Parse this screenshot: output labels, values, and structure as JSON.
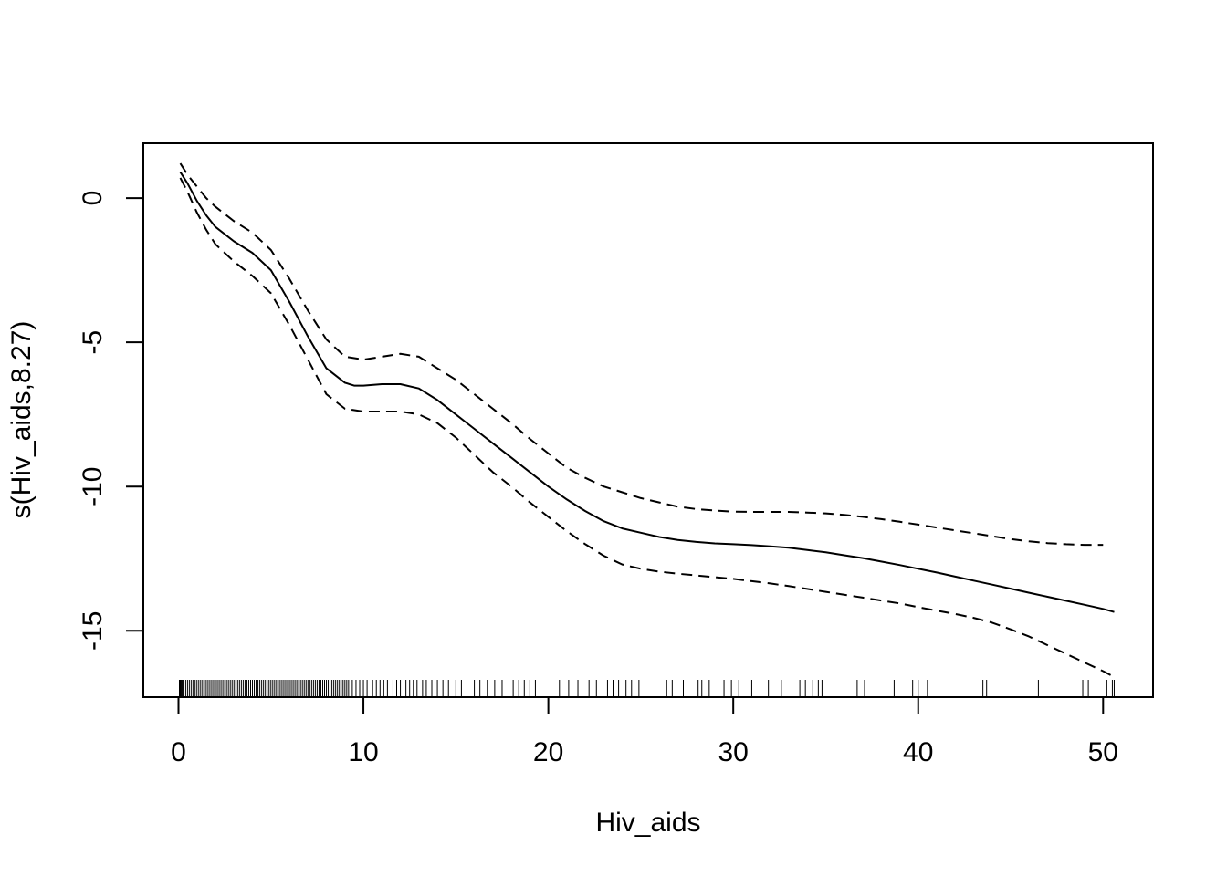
{
  "chart_data": {
    "type": "line",
    "title": "",
    "xlabel": "Hiv_aids",
    "ylabel": "s(Hiv_aids,8.27)",
    "xlim": [
      -1.9,
      52.7
    ],
    "ylim": [
      -17.3,
      1.9
    ],
    "x_ticks": [
      0,
      10,
      20,
      30,
      40,
      50
    ],
    "x_tick_labels": [
      "0",
      "10",
      "20",
      "30",
      "40",
      "50"
    ],
    "y_ticks": [
      0,
      -5,
      -10,
      -15
    ],
    "y_tick_labels": [
      "0",
      "-5",
      "-10",
      "-15"
    ],
    "grid": false,
    "legend": "none",
    "series": [
      {
        "style": "solid",
        "x": [
          0.1,
          0.5,
          1,
          1.5,
          2,
          3,
          4,
          5,
          6,
          7,
          8,
          9,
          9.5,
          10,
          11,
          12,
          13,
          14,
          15,
          16,
          17,
          18,
          19,
          20,
          21,
          22,
          23,
          24,
          25,
          26,
          27,
          28,
          29,
          30,
          31,
          32,
          33,
          34,
          35,
          36,
          37,
          38,
          39,
          40,
          41,
          42,
          43,
          44,
          45,
          46,
          47,
          48,
          49,
          50,
          50.6
        ],
        "values": [
          0.9,
          0.5,
          -0.1,
          -0.6,
          -1.0,
          -1.5,
          -1.9,
          -2.5,
          -3.6,
          -4.8,
          -5.9,
          -6.4,
          -6.5,
          -6.5,
          -6.45,
          -6.45,
          -6.6,
          -7.0,
          -7.5,
          -8.0,
          -8.5,
          -9.0,
          -9.5,
          -10.0,
          -10.45,
          -10.85,
          -11.2,
          -11.45,
          -11.6,
          -11.75,
          -11.85,
          -11.92,
          -11.97,
          -12.0,
          -12.03,
          -12.07,
          -12.12,
          -12.2,
          -12.28,
          -12.38,
          -12.48,
          -12.6,
          -12.72,
          -12.85,
          -12.98,
          -13.12,
          -13.26,
          -13.4,
          -13.54,
          -13.68,
          -13.82,
          -13.96,
          -14.1,
          -14.24,
          -14.35
        ]
      },
      {
        "style": "dashed",
        "x": [
          0.1,
          0.5,
          1,
          1.5,
          2,
          3,
          4,
          5,
          6,
          7,
          8,
          9,
          10,
          11,
          12,
          13,
          14,
          15,
          16,
          17,
          18,
          19,
          20,
          21,
          22,
          23,
          24,
          25,
          26,
          27,
          28,
          29,
          30,
          31,
          32,
          33,
          34,
          35,
          36,
          37,
          38,
          39,
          40,
          41,
          42,
          43,
          44,
          45,
          46,
          47,
          48,
          49,
          50
        ],
        "values": [
          1.2,
          0.8,
          0.4,
          0.0,
          -0.3,
          -0.8,
          -1.2,
          -1.8,
          -2.8,
          -3.9,
          -4.9,
          -5.5,
          -5.6,
          -5.5,
          -5.4,
          -5.5,
          -5.9,
          -6.3,
          -6.8,
          -7.3,
          -7.8,
          -8.35,
          -8.85,
          -9.35,
          -9.7,
          -10.0,
          -10.2,
          -10.4,
          -10.55,
          -10.7,
          -10.78,
          -10.83,
          -10.87,
          -10.88,
          -10.88,
          -10.88,
          -10.9,
          -10.93,
          -10.98,
          -11.05,
          -11.13,
          -11.22,
          -11.32,
          -11.42,
          -11.52,
          -11.62,
          -11.72,
          -11.82,
          -11.9,
          -11.96,
          -12.0,
          -12.02,
          -12.02
        ]
      },
      {
        "style": "dashed",
        "x": [
          0.1,
          0.5,
          1,
          1.5,
          2,
          3,
          4,
          5,
          6,
          7,
          8,
          9,
          10,
          11,
          12,
          13,
          14,
          15,
          16,
          17,
          18,
          19,
          20,
          21,
          22,
          23,
          24,
          25,
          26,
          27,
          28,
          29,
          30,
          31,
          32,
          33,
          34,
          35,
          36,
          37,
          38,
          39,
          40,
          41,
          42,
          43,
          44,
          45,
          46,
          47,
          48,
          49,
          50,
          50.6
        ],
        "values": [
          0.7,
          0.2,
          -0.5,
          -1.1,
          -1.6,
          -2.2,
          -2.7,
          -3.3,
          -4.4,
          -5.6,
          -6.8,
          -7.3,
          -7.4,
          -7.4,
          -7.4,
          -7.5,
          -7.8,
          -8.3,
          -8.9,
          -9.5,
          -10.0,
          -10.55,
          -11.05,
          -11.55,
          -12.0,
          -12.4,
          -12.7,
          -12.85,
          -12.95,
          -13.02,
          -13.08,
          -13.14,
          -13.2,
          -13.28,
          -13.36,
          -13.45,
          -13.55,
          -13.65,
          -13.75,
          -13.85,
          -13.95,
          -14.05,
          -14.18,
          -14.3,
          -14.42,
          -14.55,
          -14.72,
          -14.95,
          -15.2,
          -15.5,
          -15.8,
          -16.1,
          -16.4,
          -16.6
        ]
      }
    ],
    "rug": [
      0.05,
      0.1,
      0.15,
      0.2,
      0.25,
      0.3,
      0.4,
      0.5,
      0.6,
      0.7,
      0.8,
      0.9,
      1.0,
      1.1,
      1.2,
      1.3,
      1.4,
      1.5,
      1.6,
      1.7,
      1.8,
      1.9,
      2.0,
      2.1,
      2.2,
      2.3,
      2.4,
      2.5,
      2.6,
      2.7,
      2.8,
      2.9,
      3.0,
      3.1,
      3.2,
      3.3,
      3.4,
      3.5,
      3.6,
      3.7,
      3.8,
      3.9,
      4.0,
      4.1,
      4.2,
      4.3,
      4.4,
      4.5,
      4.6,
      4.7,
      4.8,
      4.9,
      5.0,
      5.1,
      5.2,
      5.3,
      5.4,
      5.5,
      5.6,
      5.7,
      5.8,
      5.9,
      6.0,
      6.1,
      6.2,
      6.3,
      6.4,
      6.5,
      6.6,
      6.7,
      6.8,
      6.9,
      7.0,
      7.1,
      7.2,
      7.3,
      7.4,
      7.5,
      7.6,
      7.7,
      7.8,
      7.9,
      8.0,
      8.1,
      8.2,
      8.3,
      8.4,
      8.5,
      8.6,
      8.7,
      8.8,
      8.9,
      9.0,
      9.1,
      9.2,
      9.4,
      9.6,
      9.8,
      10.0,
      10.2,
      10.5,
      10.7,
      10.9,
      11.1,
      11.3,
      11.6,
      11.8,
      12.0,
      12.3,
      12.5,
      12.7,
      12.9,
      13.2,
      13.4,
      13.7,
      14.0,
      14.3,
      14.6,
      15.0,
      15.3,
      15.6,
      16.0,
      16.3,
      16.7,
      17.1,
      17.5,
      18.1,
      18.4,
      18.7,
      19.0,
      19.3,
      20.6,
      21.1,
      21.6,
      22.2,
      22.6,
      23.2,
      23.5,
      23.8,
      24.2,
      24.5,
      24.9,
      26.4,
      26.7,
      27.3,
      28.1,
      28.3,
      28.7,
      29.5,
      29.9,
      30.3,
      31.0,
      31.9,
      32.6,
      33.6,
      33.9,
      34.3,
      34.6,
      34.8,
      36.7,
      37.1,
      38.7,
      39.7,
      40.0,
      40.5,
      43.5,
      43.7,
      46.5,
      48.9,
      49.2,
      50.2,
      50.5,
      50.6
    ]
  }
}
